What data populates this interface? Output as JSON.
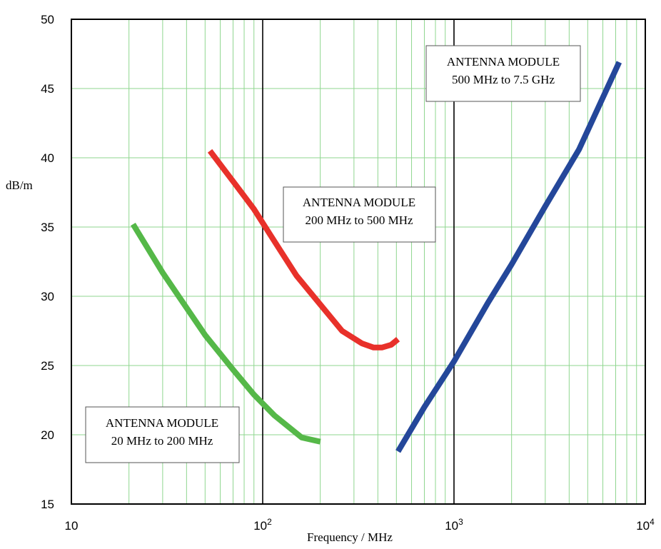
{
  "chart_data": {
    "type": "line",
    "title": "",
    "xlabel": "Frequency / MHz",
    "ylabel": "dB/m",
    "x_scale": "log",
    "xlim": [
      10,
      10000
    ],
    "ylim": [
      15,
      50
    ],
    "grid": true,
    "x_ticks": [
      {
        "value": 10,
        "base": "10",
        "exp": ""
      },
      {
        "value": 100,
        "base": "10",
        "exp": "2"
      },
      {
        "value": 1000,
        "base": "10",
        "exp": "3"
      },
      {
        "value": 10000,
        "base": "10",
        "exp": "4"
      }
    ],
    "y_ticks": [
      "15",
      "20",
      "25",
      "30",
      "35",
      "40",
      "45",
      "50"
    ],
    "series": [
      {
        "color": "#55b848",
        "x": [
          21,
          30,
          50,
          70,
          90,
          115,
          160,
          200
        ],
        "y": [
          35.2,
          31.7,
          27.2,
          24.7,
          22.9,
          21.4,
          19.8,
          19.5
        ]
      },
      {
        "color": "#e8312a",
        "x": [
          53,
          70,
          90,
          110,
          150,
          200,
          260,
          330,
          380,
          420,
          470,
          510
        ],
        "y": [
          40.5,
          38.3,
          36.3,
          34.4,
          31.5,
          29.4,
          27.5,
          26.6,
          26.3,
          26.3,
          26.5,
          26.9
        ]
      },
      {
        "color": "#24479a",
        "x": [
          510,
          700,
          1000,
          1500,
          2000,
          3000,
          4500,
          5800,
          7300
        ],
        "y": [
          18.8,
          22.0,
          25.3,
          29.5,
          32.3,
          36.5,
          40.6,
          43.9,
          46.9
        ]
      }
    ],
    "annotations": [
      {
        "line1": "ANTENNA MODULE",
        "line2": "500 MHz to 7.5 GHz"
      },
      {
        "line1": "ANTENNA MODULE",
        "line2": "200 MHz to 500 MHz"
      },
      {
        "line1": "ANTENNA MODULE",
        "line2": "20 MHz to 200 MHz"
      }
    ]
  }
}
